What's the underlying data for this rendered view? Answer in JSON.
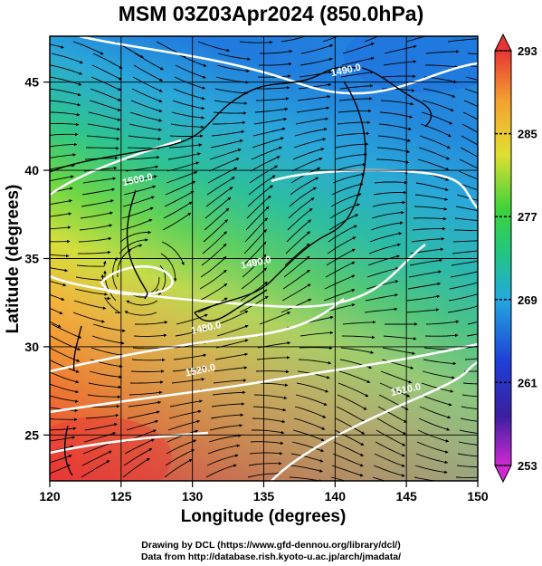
{
  "chart_data": {
    "type": "heatmap",
    "title": "MSM 03Z03Apr2024 (850.0hPa)",
    "xlabel": "Longitude (degrees)",
    "ylabel": "Latitude  (degrees)",
    "xlim": [
      120,
      150
    ],
    "ylim": [
      22.4,
      47.6
    ],
    "x_ticks": [
      120,
      125,
      130,
      135,
      140,
      145,
      150
    ],
    "y_ticks": [
      25,
      30,
      35,
      40,
      45
    ],
    "colorbar": {
      "ticks": [
        253,
        261,
        269,
        277,
        285,
        293
      ],
      "range": [
        253,
        293
      ]
    },
    "contour_labels": [
      {
        "text": "1490.0",
        "lon": 140.8,
        "lat": 45.5
      },
      {
        "text": "1500.0",
        "lon": 126.2,
        "lat": 39.3
      },
      {
        "text": "1490.0",
        "lon": 134.5,
        "lat": 34.6
      },
      {
        "text": "1480.0",
        "lon": 131.0,
        "lat": 30.9
      },
      {
        "text": "1520.0",
        "lon": 130.6,
        "lat": 28.5
      },
      {
        "text": "1510.0",
        "lon": 145.0,
        "lat": 27.4
      }
    ]
  },
  "credits": {
    "drawing": "Drawing by DCL (https://www.gfd-dennou.org/library/dcl/)",
    "data": "Data from http://database.rish.kyoto-u.ac.jp/arch/jmadata/"
  }
}
